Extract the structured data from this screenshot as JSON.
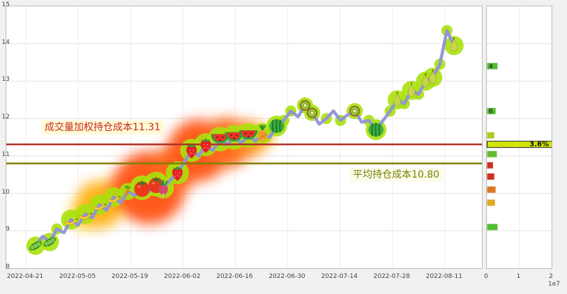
{
  "chart_data": {
    "type": "line",
    "ylim": [
      8,
      15
    ],
    "y_ticks": [
      "15",
      "14",
      "13",
      "12",
      "11",
      "10",
      "9",
      "8"
    ],
    "x_ticks": [
      "2022-04-21",
      "2022-05-05",
      "2022-05-19",
      "2022-06-02",
      "2022-06-16",
      "2022-06-30",
      "2022-07-14",
      "2022-07-28",
      "2022-08-11"
    ],
    "series": [
      {
        "name": "price",
        "color": "#9191d9",
        "values": [
          8.6,
          8.85,
          8.7,
          9.05,
          8.95,
          9.3,
          9.15,
          9.45,
          9.35,
          9.7,
          9.55,
          9.9,
          9.75,
          10.05,
          9.95,
          10.15,
          10.05,
          10.25,
          10.15,
          10.35,
          10.55,
          10.85,
          11.15,
          11.0,
          11.3,
          11.15,
          11.45,
          11.3,
          11.5,
          11.35,
          11.55,
          11.4,
          11.6,
          11.5,
          11.8,
          11.95,
          12.2,
          12.05,
          12.35,
          12.15,
          11.85,
          12.0,
          12.2,
          11.95,
          12.1,
          12.2,
          11.9,
          11.95,
          11.7,
          11.95,
          12.2,
          12.5,
          12.4,
          12.75,
          12.65,
          13.0,
          13.1,
          13.45,
          14.35,
          13.95
        ]
      }
    ],
    "cost_lines": {
      "vwap": {
        "label": "成交量加权持仓成本11.31",
        "value": 11.31,
        "color": "#b03028"
      },
      "avg": {
        "label": "平均持仓成本10.80",
        "value": 10.8,
        "color": "#7f7f00"
      }
    },
    "decorations": [
      {
        "type": "peas",
        "i": 0
      },
      {
        "type": "peas",
        "i": 2
      },
      {
        "type": "banana",
        "i": 5
      },
      {
        "type": "banana",
        "i": 7
      },
      {
        "type": "banana",
        "i": 9
      },
      {
        "type": "banana",
        "i": 11
      },
      {
        "type": "carrot",
        "i": 13
      },
      {
        "type": "tomato",
        "i": 15
      },
      {
        "type": "tomato",
        "i": 17
      },
      {
        "type": "radish",
        "i": 18
      },
      {
        "type": "strawberry",
        "i": 20
      },
      {
        "type": "strawberry",
        "i": 22
      },
      {
        "type": "strawberry",
        "i": 24
      },
      {
        "type": "watermelon-slice",
        "i": 26
      },
      {
        "type": "watermelon-slice",
        "i": 28
      },
      {
        "type": "watermelon-slice",
        "i": 30
      },
      {
        "type": "pineapple",
        "i": 32
      },
      {
        "type": "watermelon",
        "i": 34
      },
      {
        "type": "kiwi",
        "i": 38
      },
      {
        "type": "kiwi",
        "i": 39
      },
      {
        "type": "kiwi",
        "i": 45
      },
      {
        "type": "watermelon",
        "i": 48
      },
      {
        "type": "pear",
        "i": 51
      },
      {
        "type": "pear",
        "i": 53
      },
      {
        "type": "pear",
        "i": 55
      },
      {
        "type": "pear",
        "i": 56
      },
      {
        "type": "pear",
        "i": 59
      }
    ],
    "glow_points": [
      3,
      35,
      36,
      41,
      43,
      47,
      50,
      52,
      54,
      57,
      58
    ],
    "glow_blobs": [
      {
        "i": 7,
        "price": 9.45,
        "r": 22,
        "color": "#ffd000"
      },
      {
        "i": 9,
        "price": 9.7,
        "r": 34,
        "color": "#ffaa00"
      },
      {
        "i": 13,
        "price": 10.1,
        "r": 30,
        "color": "#ff7700"
      },
      {
        "i": 16,
        "price": 10.15,
        "r": 52,
        "color": "#ff4400"
      },
      {
        "i": 20,
        "price": 10.7,
        "r": 34,
        "color": "#ff5500"
      },
      {
        "i": 23,
        "price": 11.15,
        "r": 44,
        "color": "#ff4400"
      },
      {
        "i": 27,
        "price": 11.35,
        "r": 36,
        "color": "#ff5500"
      },
      {
        "i": 30,
        "price": 11.45,
        "r": 26,
        "color": "#ff7700"
      },
      {
        "i": 32,
        "price": 11.5,
        "r": 16,
        "color": "#ffaa00"
      }
    ],
    "volume_profile": {
      "x_ticks": [
        "0",
        "1",
        "2"
      ],
      "unit": "1e7",
      "bars": [
        {
          "price": 13.4,
          "length": 0.32,
          "color": "#55bb33",
          "label": "4",
          "highlight": false
        },
        {
          "price": 12.2,
          "length": 0.26,
          "color": "#55bb33",
          "label": "6",
          "highlight": false
        },
        {
          "price": 11.55,
          "length": 0.22,
          "color": "#a8cc22",
          "label": "",
          "highlight": false
        },
        {
          "price": 11.31,
          "length": 2.0,
          "color": "#d3e600",
          "label": "3.6%",
          "highlight": true
        },
        {
          "price": 11.05,
          "length": 0.3,
          "color": "#66bb33",
          "label": "",
          "highlight": false
        },
        {
          "price": 10.75,
          "length": 0.18,
          "color": "#cc3322",
          "label": "",
          "highlight": false
        },
        {
          "price": 10.45,
          "length": 0.22,
          "color": "#cc3322",
          "label": "",
          "highlight": false
        },
        {
          "price": 10.1,
          "length": 0.26,
          "color": "#dd7722",
          "label": "",
          "highlight": false
        },
        {
          "price": 9.75,
          "length": 0.24,
          "color": "#ddaa22",
          "label": "",
          "highlight": false
        },
        {
          "price": 9.1,
          "length": 0.32,
          "color": "#55bb33",
          "label": "",
          "highlight": false
        }
      ]
    }
  }
}
